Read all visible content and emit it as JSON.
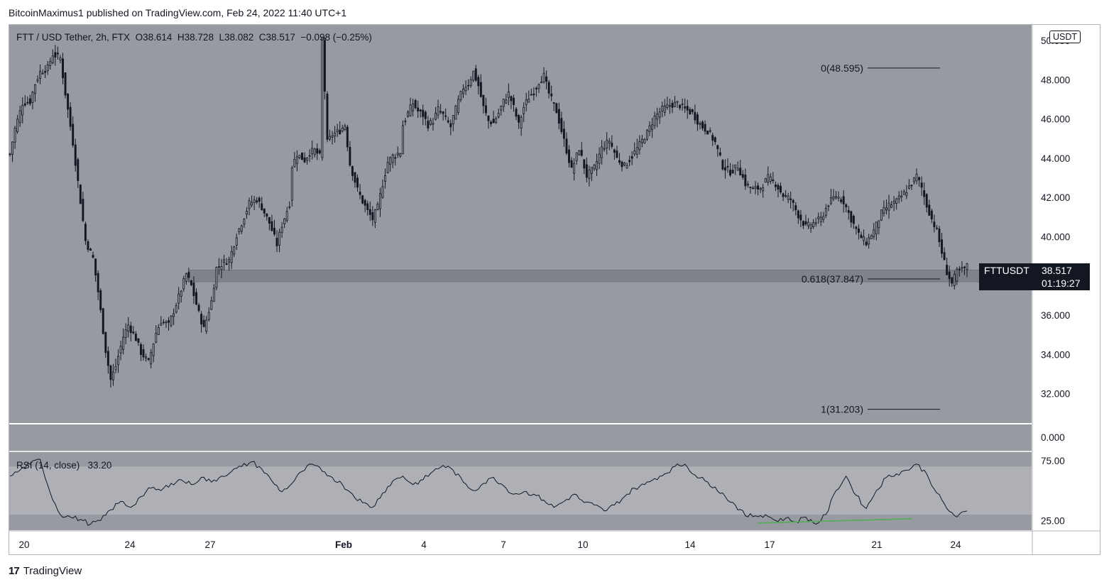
{
  "publisher": "BitcoinMaximus1 published on TradingView.com, Feb 24, 2022 11:40 UTC+1",
  "legend": {
    "symbol": "FTT / USD Tether, 2h, FTX",
    "open_label": "O",
    "open": "38.614",
    "high_label": "H",
    "high": "38.728",
    "low_label": "L",
    "low": "38.082",
    "close_label": "C",
    "close": "38.517",
    "change": "−0.098 (−0.25%)"
  },
  "currency": "USDT",
  "price_tag": {
    "symbol": "FTTUSDT",
    "price": "38.517",
    "countdown": "01:19:27"
  },
  "rsi_legend": {
    "name": "RSI (14, close)",
    "value": "33.20"
  },
  "footer": {
    "brand": "TradingView",
    "logo_text": "17"
  },
  "colors": {
    "pane_bg": "#989aa1",
    "candle": "#131722",
    "rsi_band": "#aeb0b6",
    "zone": "#7e8087",
    "divergence": "#4caf50",
    "divider": "#ffffff"
  },
  "chart_data": [
    {
      "type": "candlestick",
      "title": "FTT / USD Tether, 2h, FTX",
      "ylabel": "USDT",
      "ylim": [
        30.5,
        50.8
      ],
      "y_ticks": [
        "50.000",
        "48.000",
        "46.000",
        "44.000",
        "42.000",
        "40.000",
        "36.000",
        "34.000",
        "32.000"
      ],
      "x_ticks": [
        "20",
        "24",
        "27",
        "Feb",
        "4",
        "7",
        "10",
        "14",
        "17",
        "21",
        "24"
      ],
      "path_x": [
        0,
        2,
        5,
        8,
        10,
        12,
        15,
        17,
        20,
        22,
        25,
        28,
        30,
        33,
        35,
        38,
        40,
        42,
        45,
        47,
        50,
        52,
        55,
        58,
        60,
        63,
        65,
        68,
        70,
        72,
        75,
        77,
        80,
        82,
        85,
        87,
        88,
        90,
        92,
        95,
        98,
        100,
        103,
        106,
        108,
        111,
        112,
        114,
        117,
        119,
        121,
        123,
        124,
        126,
        128,
        131,
        133,
        135,
        138,
        140,
        142,
        144,
        146,
        148,
        150,
        152,
        155,
        156,
        158,
        160,
        162,
        164,
        166,
        168,
        170,
        172,
        175,
        176,
        178,
        180,
        182,
        184,
        186,
        188,
        190,
        192,
        194,
        196,
        198,
        200,
        202,
        204,
        206,
        208,
        210,
        212,
        214,
        217,
        220,
        223,
        226,
        229,
        232,
        235,
        238,
        241,
        244,
        247,
        250,
        253,
        256
      ],
      "path_close": [
        44.2,
        45.5,
        46.8,
        46.9,
        47.8,
        48.4,
        48.6,
        49.3,
        49.1,
        47.3,
        44.8,
        41.8,
        39.8,
        38.9,
        37.2,
        34.2,
        32.7,
        33.4,
        34.9,
        35.5,
        34.8,
        34.1,
        33.6,
        35.1,
        35.7,
        35.5,
        36.2,
        37.3,
        38.1,
        37.5,
        36.1,
        35.3,
        36.7,
        38.4,
        38.7,
        38.8,
        39.2,
        40.1,
        40.7,
        41.7,
        41.9,
        41.5,
        40.7,
        39.6,
        40.6,
        41.7,
        43.6,
        44.2,
        43.9,
        44.3,
        44.4,
        44.1,
        50.1,
        44.8,
        45.2,
        45.4,
        45.7,
        43.7,
        42.4,
        41.8,
        41.3,
        40.9,
        41.5,
        42.7,
        43.8,
        44.1,
        44.3,
        45.7,
        46.3,
        46.8,
        46.4,
        46.2,
        45.7,
        45.9,
        46.5,
        46.2,
        45.6,
        46.1,
        46.9,
        47.6,
        47.8,
        48.4,
        47.7,
        46.6,
        45.9,
        45.8,
        46.3,
        46.9,
        47.3,
        46.6,
        45.7,
        46.6,
        47.1,
        47.4,
        47.9,
        48.2,
        47.3,
        46.4,
        44.9,
        43.4,
        44.5,
        43.1,
        43.5,
        44.5,
        44.9,
        44.0,
        43.6,
        44.1,
        44.7,
        45.3,
        46.1
      ],
      "path_x_2": [
        256,
        259,
        262,
        265,
        268,
        271,
        274,
        277,
        280,
        283,
        286,
        289,
        292,
        295,
        298,
        301,
        304,
        307,
        310,
        313,
        316,
        319,
        322,
        325,
        328,
        331,
        334,
        337,
        340,
        343,
        346,
        349,
        352,
        355,
        358,
        360,
        362,
        364,
        366,
        368,
        370,
        372,
        374,
        376,
        378,
        380
      ],
      "path_close_2": [
        46.1,
        46.5,
        46.7,
        46.8,
        46.5,
        46.3,
        45.7,
        45.4,
        44.8,
        43.6,
        43.3,
        43.6,
        42.7,
        42.4,
        42.5,
        43.0,
        42.7,
        42.1,
        41.9,
        41.1,
        40.5,
        40.7,
        40.9,
        41.7,
        42.1,
        41.8,
        40.9,
        40.1,
        39.7,
        40.3,
        41.2,
        41.6,
        41.8,
        42.2,
        42.7,
        43.1,
        42.5,
        41.6,
        40.9,
        40.3,
        39.2,
        38.2,
        37.6,
        38.2,
        38.3,
        38.5
      ],
      "fib_levels": [
        {
          "label": "0(48.595)",
          "value": 48.595
        },
        {
          "label": "0.618(37.847)",
          "value": 37.847
        },
        {
          "label": "1(31.203)",
          "value": 31.203
        }
      ],
      "support_zone": [
        37.7,
        38.3
      ]
    },
    {
      "type": "line",
      "title": "RSI (14, close)",
      "ylim": [
        17,
        82
      ],
      "y_ticks": [
        "75.00",
        "25.00"
      ],
      "band": [
        30,
        70
      ],
      "series": [
        {
          "name": "RSI (14, close)",
          "x": [
            0,
            4,
            8,
            12,
            16,
            20,
            24,
            28,
            32,
            36,
            40,
            44,
            48,
            52,
            56,
            60,
            64,
            68,
            72,
            76,
            80,
            84,
            88,
            92,
            96,
            100,
            104,
            108,
            112,
            116,
            120,
            124,
            128,
            132,
            136,
            140,
            144,
            148,
            152,
            156,
            160,
            164,
            168,
            172,
            176,
            180,
            184,
            188,
            192,
            196,
            200,
            204,
            208,
            212,
            216,
            220,
            224,
            228,
            232,
            236,
            240,
            244,
            248,
            252,
            256,
            260,
            264,
            268,
            272,
            276,
            280,
            284,
            288,
            292,
            296,
            300,
            304,
            308,
            312,
            316,
            320,
            324,
            328,
            332,
            336,
            340,
            344,
            348,
            352,
            356,
            360,
            364,
            368,
            372,
            376,
            380
          ],
          "values": [
            62,
            67,
            72,
            76,
            48,
            30,
            28,
            26,
            22,
            25,
            34,
            41,
            36,
            45,
            52,
            50,
            56,
            59,
            55,
            61,
            57,
            62,
            66,
            70,
            74,
            68,
            58,
            49,
            56,
            66,
            72,
            66,
            61,
            55,
            47,
            40,
            36,
            48,
            58,
            62,
            55,
            59,
            66,
            71,
            67,
            57,
            50,
            56,
            61,
            54,
            47,
            49,
            47,
            42,
            36,
            41,
            47,
            40,
            38,
            33,
            38,
            45,
            52,
            55,
            60,
            64,
            70,
            72,
            63,
            58,
            53,
            45,
            38,
            29,
            29,
            30,
            25,
            27,
            24,
            28,
            22,
            30,
            50,
            62,
            46,
            35,
            50,
            61,
            64,
            67,
            72,
            64,
            48,
            35,
            28,
            33
          ]
        }
      ],
      "divergence": {
        "x": [
          297,
          358
        ],
        "values": [
          23.0,
          26.5
        ]
      }
    }
  ]
}
